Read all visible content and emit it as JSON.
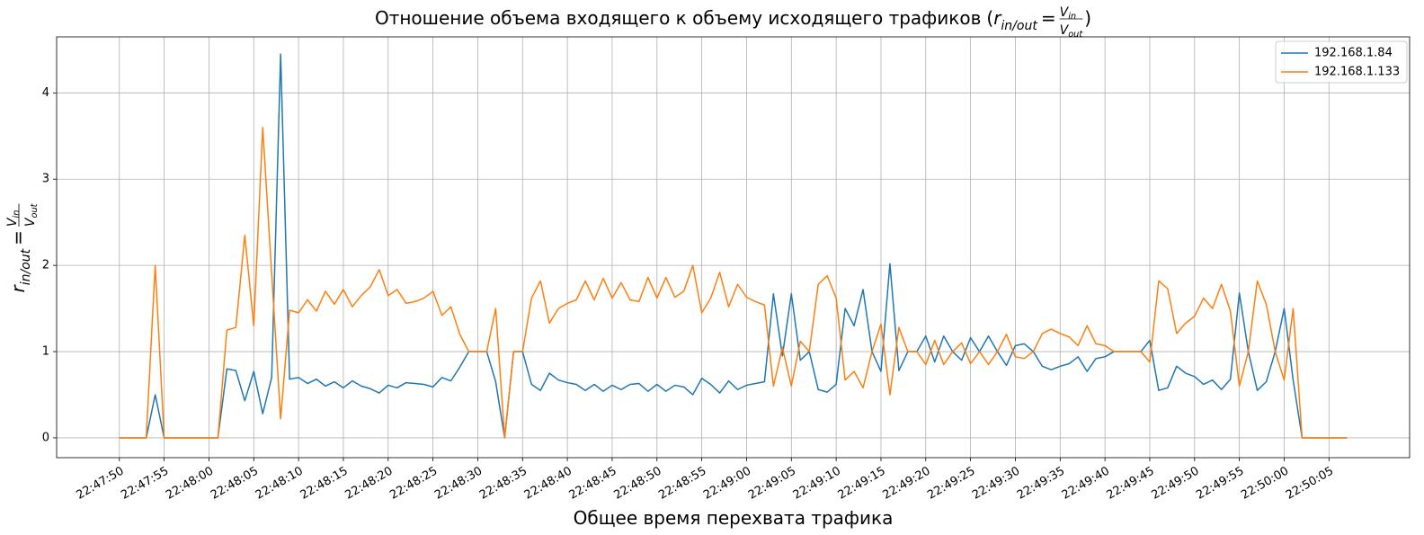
{
  "chart_data": {
    "type": "line",
    "title": "Отношение объема входящего к объему исходящего трафиков",
    "title_open": "(",
    "title_close": ")",
    "formula": {
      "lhs": "r",
      "lhs_sub": "in/out",
      "eq": "=",
      "num": "V",
      "num_sub": "in",
      "den": "V",
      "den_sub": "out"
    },
    "x_label": "Общее время перехвата трафика",
    "x": [
      "22:47:50",
      "22:47:51",
      "22:47:52",
      "22:47:53",
      "22:47:54",
      "22:47:55",
      "22:47:56",
      "22:47:57",
      "22:47:58",
      "22:47:59",
      "22:48:00",
      "22:48:01",
      "22:48:02",
      "22:48:03",
      "22:48:04",
      "22:48:05",
      "22:48:06",
      "22:48:07",
      "22:48:08",
      "22:48:09",
      "22:48:10",
      "22:48:11",
      "22:48:12",
      "22:48:13",
      "22:48:14",
      "22:48:15",
      "22:48:16",
      "22:48:17",
      "22:48:18",
      "22:48:19",
      "22:48:20",
      "22:48:21",
      "22:48:22",
      "22:48:23",
      "22:48:24",
      "22:48:25",
      "22:48:26",
      "22:48:27",
      "22:48:28",
      "22:48:29",
      "22:48:30",
      "22:48:31",
      "22:48:32",
      "22:48:33",
      "22:48:34",
      "22:48:35",
      "22:48:36",
      "22:48:37",
      "22:48:38",
      "22:48:39",
      "22:48:40",
      "22:48:41",
      "22:48:42",
      "22:48:43",
      "22:48:44",
      "22:48:45",
      "22:48:46",
      "22:48:47",
      "22:48:48",
      "22:48:49",
      "22:48:50",
      "22:48:51",
      "22:48:52",
      "22:48:53",
      "22:48:54",
      "22:48:55",
      "22:48:56",
      "22:48:57",
      "22:48:58",
      "22:48:59",
      "22:49:00",
      "22:49:01",
      "22:49:02",
      "22:49:03",
      "22:49:04",
      "22:49:05",
      "22:49:06",
      "22:49:07",
      "22:49:08",
      "22:49:09",
      "22:49:10",
      "22:49:11",
      "22:49:12",
      "22:49:13",
      "22:49:14",
      "22:49:15",
      "22:49:16",
      "22:49:17",
      "22:49:18",
      "22:49:19",
      "22:49:20",
      "22:49:21",
      "22:49:22",
      "22:49:23",
      "22:49:24",
      "22:49:25",
      "22:49:26",
      "22:49:27",
      "22:49:28",
      "22:49:29",
      "22:49:30",
      "22:49:31",
      "22:49:32",
      "22:49:33",
      "22:49:34",
      "22:49:35",
      "22:49:36",
      "22:49:37",
      "22:49:38",
      "22:49:39",
      "22:49:40",
      "22:49:41",
      "22:49:42",
      "22:49:43",
      "22:49:44",
      "22:49:45",
      "22:49:46",
      "22:49:47",
      "22:49:48",
      "22:49:49",
      "22:49:50",
      "22:49:51",
      "22:49:52",
      "22:49:53",
      "22:49:54",
      "22:49:55",
      "22:49:56",
      "22:49:57",
      "22:49:58",
      "22:49:59",
      "22:50:00",
      "22:50:01",
      "22:50:02",
      "22:50:03",
      "22:50:04",
      "22:50:05",
      "22:50:06",
      "22:50:07"
    ],
    "series": [
      {
        "name": "192.168.1.84",
        "color": "#1f77b4",
        "values": [
          0,
          0,
          0,
          0,
          0.5,
          0,
          0,
          0,
          0,
          0,
          0,
          0,
          0.8,
          0.78,
          0.43,
          0.77,
          0.28,
          0.7,
          4.45,
          0.68,
          0.7,
          0.63,
          0.68,
          0.6,
          0.65,
          0.58,
          0.66,
          0.6,
          0.57,
          0.52,
          0.61,
          0.58,
          0.64,
          0.63,
          0.62,
          0.59,
          0.7,
          0.66,
          0.82,
          1.0,
          1.0,
          1.0,
          0.65,
          0,
          1.0,
          1.0,
          0.62,
          0.55,
          0.75,
          0.67,
          0.64,
          0.62,
          0.55,
          0.62,
          0.54,
          0.61,
          0.56,
          0.62,
          0.63,
          0.54,
          0.62,
          0.54,
          0.61,
          0.59,
          0.5,
          0.69,
          0.62,
          0.52,
          0.66,
          0.56,
          0.61,
          0.63,
          0.65,
          1.67,
          0.95,
          1.67,
          0.9,
          1.0,
          0.56,
          0.53,
          0.62,
          1.5,
          1.3,
          1.72,
          1.0,
          0.77,
          2.02,
          0.78,
          1.0,
          1.0,
          1.18,
          0.88,
          1.18,
          1.0,
          0.9,
          1.16,
          1.0,
          1.18,
          1.0,
          0.84,
          1.07,
          1.09,
          1.0,
          0.83,
          0.79,
          0.83,
          0.86,
          0.94,
          0.77,
          0.92,
          0.94,
          1.0,
          1.0,
          1.0,
          1.0,
          1.13,
          0.55,
          0.58,
          0.83,
          0.75,
          0.71,
          0.62,
          0.67,
          0.56,
          0.68,
          1.68,
          1.0,
          0.55,
          0.65,
          1.0,
          1.5,
          0.67,
          0,
          0,
          0,
          0,
          0,
          0
        ]
      },
      {
        "name": "192.168.1.133",
        "color": "#ff7f0e",
        "values": [
          0,
          0,
          0,
          0,
          2.0,
          0,
          0,
          0,
          0,
          0,
          0,
          0,
          1.25,
          1.28,
          2.35,
          1.3,
          3.6,
          1.9,
          0.22,
          1.48,
          1.45,
          1.6,
          1.47,
          1.7,
          1.55,
          1.72,
          1.52,
          1.65,
          1.75,
          1.95,
          1.65,
          1.72,
          1.56,
          1.58,
          1.62,
          1.7,
          1.42,
          1.52,
          1.2,
          1.0,
          1.0,
          1.0,
          1.5,
          0,
          1.0,
          1.0,
          1.62,
          1.82,
          1.33,
          1.5,
          1.56,
          1.6,
          1.82,
          1.6,
          1.85,
          1.62,
          1.8,
          1.6,
          1.58,
          1.86,
          1.62,
          1.86,
          1.63,
          1.7,
          2.0,
          1.45,
          1.62,
          1.92,
          1.52,
          1.78,
          1.63,
          1.58,
          1.54,
          0.6,
          1.05,
          0.6,
          1.12,
          1.0,
          1.78,
          1.88,
          1.62,
          0.67,
          0.77,
          0.58,
          1.0,
          1.32,
          0.5,
          1.28,
          1.0,
          1.0,
          0.85,
          1.13,
          0.85,
          1.0,
          1.1,
          0.86,
          1.0,
          0.85,
          1.0,
          1.2,
          0.94,
          0.92,
          1.0,
          1.21,
          1.26,
          1.21,
          1.17,
          1.07,
          1.3,
          1.09,
          1.07,
          1.0,
          1.0,
          1.0,
          1.0,
          0.88,
          1.82,
          1.73,
          1.21,
          1.33,
          1.41,
          1.62,
          1.5,
          1.78,
          1.47,
          0.6,
          1.0,
          1.82,
          1.55,
          1.0,
          0.67,
          1.5,
          0,
          0,
          0,
          0,
          0,
          0
        ]
      }
    ],
    "xlim": [
      "22:47:43",
      "22:50:14"
    ],
    "xticks": [
      "22:47:50",
      "22:47:55",
      "22:48:00",
      "22:48:05",
      "22:48:10",
      "22:48:15",
      "22:48:20",
      "22:48:25",
      "22:48:30",
      "22:48:35",
      "22:48:40",
      "22:48:45",
      "22:48:50",
      "22:48:55",
      "22:49:00",
      "22:49:05",
      "22:49:10",
      "22:49:15",
      "22:49:20",
      "22:49:25",
      "22:49:30",
      "22:49:35",
      "22:49:40",
      "22:49:45",
      "22:49:50",
      "22:49:55",
      "22:50:00",
      "22:50:05"
    ],
    "ylim": [
      -0.23,
      4.65
    ],
    "yticks": [
      0,
      1,
      2,
      3,
      4
    ],
    "grid": true,
    "legend": "upper right"
  }
}
